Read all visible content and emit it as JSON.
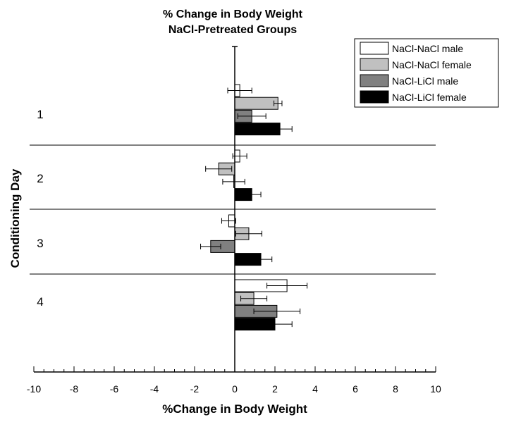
{
  "chart_data": {
    "type": "bar",
    "orientation": "horizontal",
    "title_lines": [
      "% Change in Body Weight",
      "NaCl-Pretreated Groups"
    ],
    "xlabel": "%Change in Body Weight",
    "ylabel": "Conditioning Day",
    "xlim": [
      -10,
      10
    ],
    "x_major_ticks": [
      -10,
      -8,
      -6,
      -4,
      -2,
      0,
      2,
      4,
      6,
      8,
      10
    ],
    "x_tick_labels": [
      "-10",
      "-8",
      "-6",
      "-4",
      "-2",
      "0",
      "2",
      "4",
      "6",
      "8",
      "10"
    ],
    "categories": [
      "1",
      "2",
      "3",
      "4"
    ],
    "legend_position": "top-right",
    "grid": false,
    "series": [
      {
        "name": "NaCl-NaCl male",
        "color": "#ffffff",
        "values": [
          0.25,
          0.25,
          -0.3,
          2.6
        ],
        "errors": [
          0.6,
          0.35,
          0.35,
          1.0
        ]
      },
      {
        "name": "NaCl-NaCl female",
        "color": "#c0c0c0",
        "values": [
          2.15,
          -0.8,
          0.7,
          0.95
        ],
        "errors": [
          0.2,
          0.65,
          0.65,
          0.65
        ]
      },
      {
        "name": "NaCl-LiCl male",
        "color": "#808080",
        "values": [
          0.85,
          -0.05,
          -1.2,
          2.1
        ],
        "errors": [
          0.7,
          0.55,
          0.5,
          1.15
        ]
      },
      {
        "name": "NaCl-LiCl female",
        "color": "#000000",
        "values": [
          2.25,
          0.85,
          1.3,
          2.0
        ],
        "errors": [
          0.6,
          0.45,
          0.55,
          0.85
        ]
      }
    ]
  }
}
